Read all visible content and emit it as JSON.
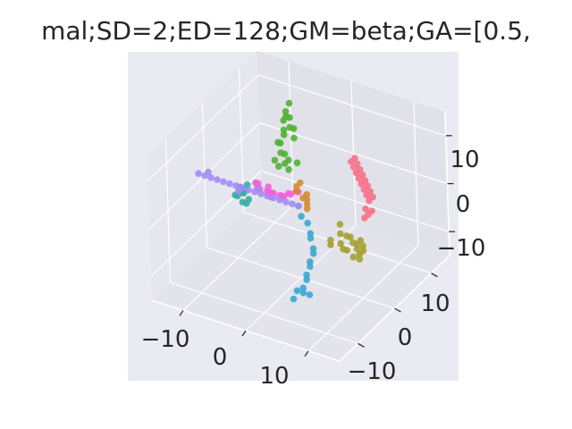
{
  "chart_data": {
    "type": "scatter",
    "projection": "3d",
    "title": "mal;SD=2;ED=128;GM=beta;GA=[0.5,",
    "xlabel": "",
    "ylabel": "",
    "zlabel": "",
    "grid": true,
    "background": "#eaeaf2",
    "axes": {
      "x": {
        "ticks": [
          "−10",
          "0",
          "10"
        ],
        "range": [
          -15,
          15
        ]
      },
      "y": {
        "ticks": [
          "−10",
          "0",
          "10"
        ],
        "range": [
          -15,
          15
        ]
      },
      "z": {
        "ticks": [
          "−10",
          "0",
          "10"
        ],
        "range": [
          -15,
          15
        ]
      }
    },
    "series": [
      {
        "color": "#f77189",
        "points": [
          [
            2,
            12,
            2
          ],
          [
            2,
            11,
            2
          ],
          [
            3,
            11,
            2
          ],
          [
            3,
            10,
            2
          ],
          [
            4,
            10,
            2
          ],
          [
            4,
            9,
            2
          ],
          [
            5,
            9,
            2
          ],
          [
            5,
            8,
            2
          ],
          [
            6,
            8,
            2
          ],
          [
            6,
            7,
            2
          ],
          [
            7,
            7,
            2
          ],
          [
            7,
            6,
            2
          ],
          [
            8,
            6,
            2
          ],
          [
            8,
            5,
            2
          ],
          [
            9,
            5,
            2
          ],
          [
            9,
            4,
            2
          ],
          [
            9,
            3,
            1
          ],
          [
            10,
            3,
            1
          ],
          [
            10,
            2,
            1
          ],
          [
            10,
            1,
            1
          ]
        ]
      },
      {
        "color": "#d58c32",
        "points": [
          [
            2,
            -1,
            1
          ],
          [
            2,
            -1,
            2
          ],
          [
            2,
            -1,
            3
          ],
          [
            2,
            -1,
            4
          ],
          [
            2,
            -2,
            4
          ],
          [
            1,
            -2,
            5
          ],
          [
            1,
            -2,
            6
          ],
          [
            1,
            -1,
            6
          ]
        ]
      },
      {
        "color": "#a4a031",
        "points": [
          [
            6,
            1,
            -2
          ],
          [
            6,
            1,
            -4
          ],
          [
            7,
            1,
            -4
          ],
          [
            7,
            2,
            -5
          ],
          [
            8,
            1,
            -5
          ],
          [
            8,
            2,
            -6
          ],
          [
            8,
            2,
            -7
          ],
          [
            9,
            1,
            -7
          ],
          [
            9,
            2,
            -7
          ],
          [
            9,
            1,
            -8
          ],
          [
            8,
            1,
            -8
          ],
          [
            7,
            1,
            -7
          ],
          [
            6,
            1,
            -6
          ],
          [
            5,
            0,
            -6
          ],
          [
            5,
            0,
            -5
          ],
          [
            7,
            0,
            -6
          ],
          [
            9,
            2,
            -6
          ],
          [
            8,
            3,
            -6
          ]
        ]
      },
      {
        "color": "#50b131",
        "points": [
          [
            -2,
            0,
            8
          ],
          [
            -2,
            0,
            10
          ],
          [
            -2,
            -1,
            11
          ],
          [
            -2,
            -1,
            13
          ],
          [
            -2,
            0,
            14
          ],
          [
            -2,
            0,
            15
          ],
          [
            -1,
            0,
            16
          ],
          [
            -1,
            0,
            18
          ],
          [
            -1,
            -1,
            19
          ],
          [
            -1,
            -1,
            20
          ],
          [
            -1,
            0,
            21
          ],
          [
            -2,
            0,
            17
          ],
          [
            -3,
            0,
            12
          ],
          [
            -3,
            -1,
            9
          ],
          [
            -2,
            1,
            8
          ],
          [
            -1,
            1,
            13
          ],
          [
            -1,
            1,
            15
          ],
          [
            0,
            0,
            9
          ],
          [
            -3,
            0,
            7
          ],
          [
            -2,
            1,
            6
          ]
        ]
      },
      {
        "color": "#36ada4",
        "points": [
          [
            -10,
            1,
            -1
          ],
          [
            -10,
            2,
            -3
          ],
          [
            -11,
            2,
            -4
          ],
          [
            -12,
            3,
            -5
          ],
          [
            -12,
            4,
            -5
          ],
          [
            -12,
            5,
            -6
          ],
          [
            -11,
            4,
            -4
          ],
          [
            -9,
            1,
            -4
          ],
          [
            -9,
            0,
            -3
          ],
          [
            -8,
            0,
            -2
          ],
          [
            -10,
            3,
            -2
          ],
          [
            -8,
            2,
            0
          ]
        ]
      },
      {
        "color": "#38a7d0",
        "points": [
          [
            0,
            0,
            0
          ],
          [
            1,
            -1,
            -1
          ],
          [
            2,
            -1,
            -2
          ],
          [
            3,
            -2,
            -3
          ],
          [
            3,
            -2,
            -4
          ],
          [
            4,
            -3,
            -5
          ],
          [
            4,
            -3,
            -6
          ],
          [
            4,
            -4,
            -7
          ],
          [
            4,
            -4,
            -8
          ],
          [
            4,
            -5,
            -9
          ],
          [
            4,
            -5,
            -10
          ],
          [
            4,
            -6,
            -11
          ],
          [
            3,
            -6,
            -12
          ],
          [
            3,
            -7,
            -13
          ],
          [
            4,
            -6,
            -12
          ],
          [
            5,
            -6,
            -12
          ]
        ]
      },
      {
        "color": "#a48cf4",
        "points": [
          [
            -15,
            0,
            0
          ],
          [
            -14,
            0,
            0
          ],
          [
            -13,
            0,
            0
          ],
          [
            -12,
            0,
            0
          ],
          [
            -11,
            0,
            0
          ],
          [
            -10,
            0,
            0
          ],
          [
            -9,
            0,
            0
          ],
          [
            -8,
            0,
            0
          ],
          [
            -7,
            0,
            0
          ],
          [
            -6,
            0,
            0
          ],
          [
            -5,
            0,
            0
          ],
          [
            -4,
            0,
            0
          ],
          [
            -3,
            0,
            0
          ],
          [
            -2,
            0,
            0
          ],
          [
            -1,
            0,
            0
          ],
          [
            0,
            0,
            0
          ],
          [
            -16,
            0,
            0
          ],
          [
            -15,
            1,
            0
          ],
          [
            -7,
            1,
            0
          ],
          [
            -9,
            -1,
            0
          ]
        ]
      },
      {
        "color": "#f561dd",
        "points": [
          [
            -7,
            1,
            1
          ],
          [
            -6,
            2,
            0
          ],
          [
            -8,
            3,
            -2
          ],
          [
            -5,
            1,
            -1
          ],
          [
            -6,
            3,
            -2
          ],
          [
            -4,
            2,
            -1
          ],
          [
            -7,
            4,
            -3
          ],
          [
            -5,
            4,
            -3
          ],
          [
            -6,
            5,
            -4
          ],
          [
            -4,
            4,
            -2
          ],
          [
            -3,
            3,
            -1
          ],
          [
            -8,
            2,
            0
          ],
          [
            -4,
            6,
            -3
          ],
          [
            -6,
            6,
            -5
          ],
          [
            -9,
            4,
            -3
          ],
          [
            -3,
            5,
            -2
          ],
          [
            -5,
            0,
            1
          ],
          [
            -7,
            5,
            -4
          ]
        ]
      }
    ]
  }
}
